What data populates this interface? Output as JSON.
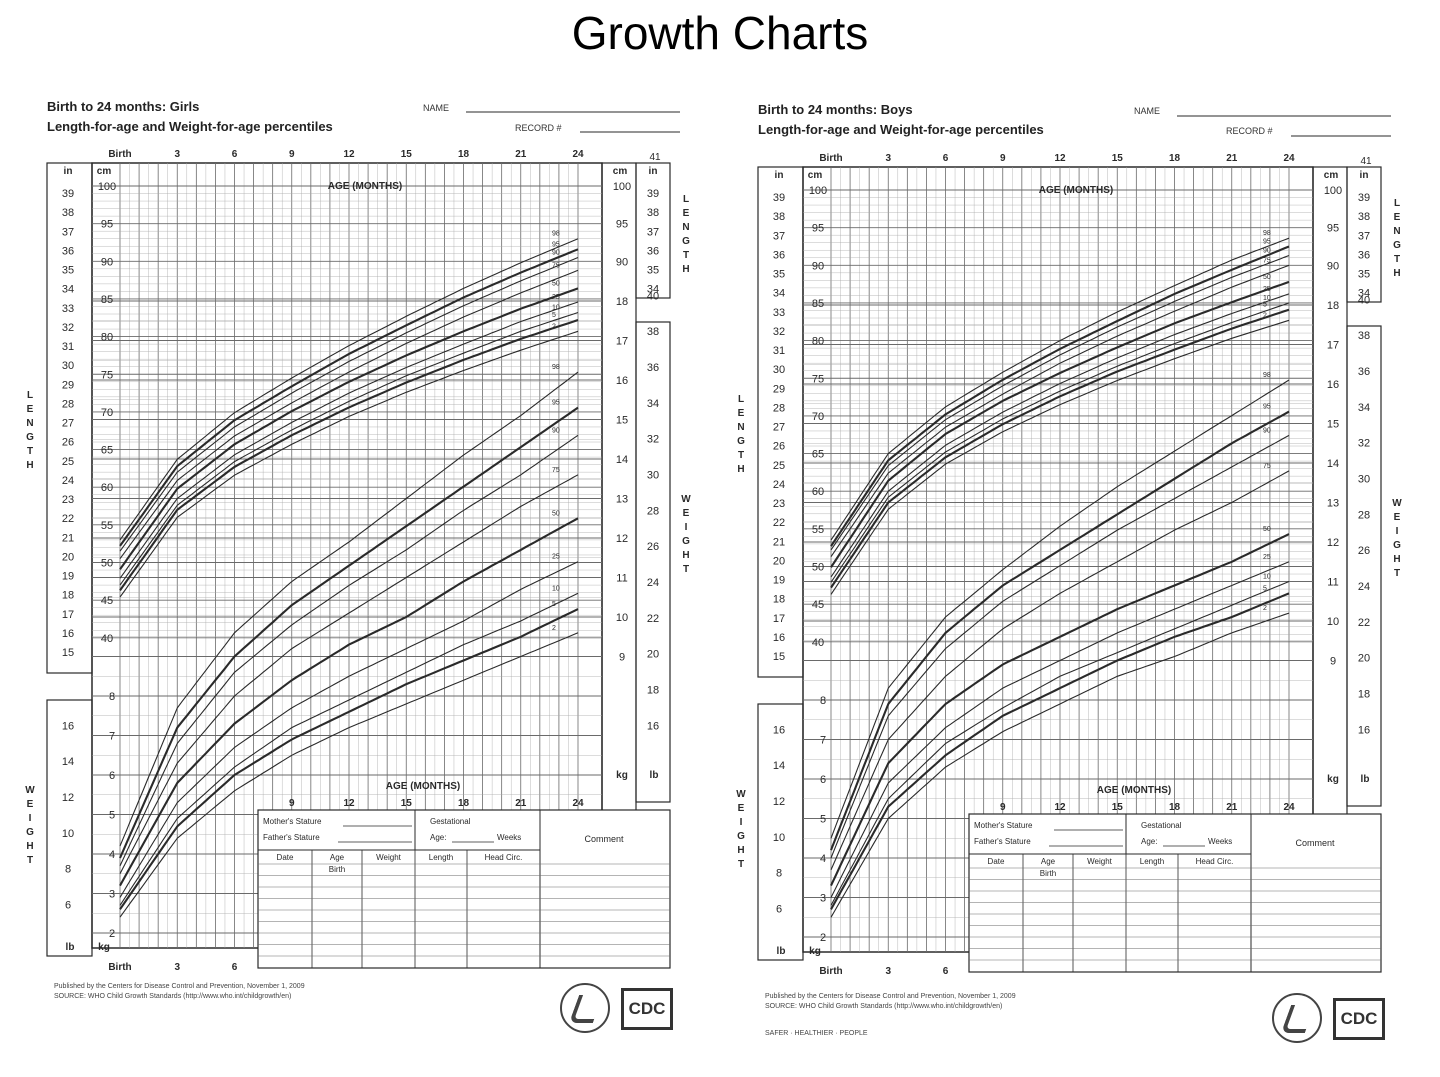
{
  "title": "Growth Charts",
  "colors": {
    "ink": "#2a2a2a",
    "grid": "#6a6a6a",
    "gridLight": "#a8a8a8",
    "background": "#ffffff"
  },
  "panels": [
    {
      "id": "girls",
      "title_line1": "Birth to 24 months: Girls",
      "title_line2": "Length-for-age and Weight-for-age percentiles",
      "name_label": "NAME",
      "record_label": "RECORD #",
      "axis_label": "AGE (MONTHS)",
      "unit_cm": "cm",
      "unit_in": "in",
      "unit_kg": "kg",
      "unit_lb": "lb",
      "side_length": "LENGTH",
      "side_weight": "WEIGHT",
      "pub_line1": "Published by the Centers for Disease Control and Prevention, November 1, 2009",
      "pub_line2": "SOURCE: WHO Child Growth Standards (http://www.who.int/childgrowth/en)",
      "footer_extra": "",
      "logo_text": "CDC",
      "form": {
        "mothers_stature": "Mother's Stature",
        "fathers_stature": "Father's Stature",
        "gestational": "Gestational",
        "age": "Age:",
        "weeks": "Weeks",
        "comment": "Comment",
        "cols": [
          "Date",
          "Age",
          "Weight",
          "Length",
          "Head Circ."
        ],
        "birth": "Birth"
      },
      "weight_pct_labels": [
        "98",
        "95",
        "90",
        "75",
        "50",
        "25",
        "10",
        "5",
        "2"
      ]
    },
    {
      "id": "boys",
      "title_line1": "Birth to 24 months: Boys",
      "title_line2": "Length-for-age and Weight-for-age percentiles",
      "name_label": "NAME",
      "record_label": "RECORD #",
      "axis_label": "AGE (MONTHS)",
      "unit_cm": "cm",
      "unit_in": "in",
      "unit_kg": "kg",
      "unit_lb": "lb",
      "side_length": "LENGTH",
      "side_weight": "WEIGHT",
      "pub_line1": "Published by the Centers for Disease Control and Prevention, November 1, 2009",
      "pub_line2": "SOURCE: WHO Child Growth Standards (http://www.who.int/childgrowth/en)",
      "footer_extra": "SAFER · HEALTHIER · PEOPLE",
      "logo_text": "CDC",
      "form": {
        "mothers_stature": "Mother's Stature",
        "fathers_stature": "Father's Stature",
        "gestational": "Gestational",
        "age": "Age:",
        "weeks": "Weeks",
        "comment": "Comment",
        "cols": [
          "Date",
          "Age",
          "Weight",
          "Length",
          "Head Circ."
        ],
        "birth": "Birth"
      },
      "weight_pct_labels": [
        "98",
        "95",
        "90",
        "75",
        "50",
        "25",
        "10",
        "5",
        "2"
      ]
    }
  ],
  "chart_data": [
    {
      "type": "line",
      "title": "Birth to 24 months: Girls — Length-for-age percentiles",
      "xlabel": "AGE (MONTHS)",
      "ylabel": "LENGTH",
      "x": [
        0,
        3,
        6,
        9,
        12,
        15,
        18,
        21,
        24
      ],
      "x_ticks": [
        "Birth",
        "3",
        "6",
        "9",
        "12",
        "15",
        "18",
        "21",
        "24"
      ],
      "y_unit": "cm",
      "ylim": [
        38,
        101
      ],
      "y_ticks": [
        40,
        45,
        50,
        55,
        60,
        65,
        70,
        75,
        80,
        85,
        90,
        95,
        100
      ],
      "y_ticks_in": [
        15,
        16,
        17,
        18,
        19,
        20,
        21,
        22,
        23,
        24,
        25,
        26,
        27,
        28,
        29,
        30,
        31,
        32,
        33,
        34,
        35,
        36,
        37,
        38,
        39
      ],
      "series": [
        {
          "name": "98",
          "values": [
            53.0,
            63.7,
            69.9,
            74.5,
            78.8,
            82.7,
            86.4,
            89.8,
            93.0
          ]
        },
        {
          "name": "95",
          "values": [
            52.2,
            62.8,
            68.9,
            73.4,
            77.7,
            81.5,
            85.2,
            88.5,
            91.6
          ]
        },
        {
          "name": "90",
          "values": [
            51.5,
            62.0,
            68.0,
            72.5,
            76.7,
            80.5,
            84.1,
            87.4,
            90.5
          ]
        },
        {
          "name": "75",
          "values": [
            50.5,
            60.9,
            66.8,
            71.2,
            75.3,
            79.1,
            82.6,
            85.8,
            88.8
          ]
        },
        {
          "name": "50",
          "values": [
            49.1,
            59.8,
            65.7,
            70.1,
            74.0,
            77.5,
            80.7,
            83.7,
            86.4
          ]
        },
        {
          "name": "25",
          "values": [
            47.9,
            58.5,
            64.3,
            68.6,
            72.5,
            75.9,
            79.0,
            82.0,
            84.6
          ]
        },
        {
          "name": "10",
          "values": [
            47.0,
            57.6,
            63.4,
            67.6,
            71.4,
            74.8,
            77.8,
            80.7,
            83.2
          ]
        },
        {
          "name": "5",
          "values": [
            46.3,
            57.0,
            62.7,
            66.9,
            70.6,
            73.9,
            76.9,
            79.7,
            82.2
          ]
        },
        {
          "name": "2",
          "values": [
            45.4,
            56.0,
            61.6,
            65.7,
            69.4,
            72.6,
            75.5,
            78.2,
            80.7
          ]
        }
      ]
    },
    {
      "type": "line",
      "title": "Birth to 24 months: Girls — Weight-for-age percentiles",
      "xlabel": "AGE (MONTHS)",
      "ylabel": "WEIGHT",
      "x": [
        0,
        3,
        6,
        9,
        12,
        15,
        18,
        21,
        24
      ],
      "x_ticks": [
        "Birth",
        "3",
        "6",
        "9",
        "12",
        "15",
        "18",
        "21",
        "24"
      ],
      "y_unit": "kg",
      "ylim": [
        1.5,
        19
      ],
      "y_ticks": [
        2,
        3,
        4,
        5,
        6,
        7,
        8,
        9,
        10,
        11,
        12,
        13,
        14,
        15,
        16,
        17,
        18
      ],
      "y_ticks_lb": [
        6,
        8,
        10,
        12,
        14,
        16,
        18,
        20,
        22,
        24,
        26,
        28,
        30,
        32,
        34,
        36,
        38,
        40
      ],
      "series": [
        {
          "name": "98",
          "values": [
            4.2,
            7.7,
            9.6,
            10.9,
            11.9,
            13.0,
            14.1,
            15.1,
            16.2
          ]
        },
        {
          "name": "95",
          "values": [
            3.9,
            7.2,
            9.0,
            10.3,
            11.3,
            12.3,
            13.3,
            14.3,
            15.3
          ]
        },
        {
          "name": "90",
          "values": [
            3.7,
            6.8,
            8.6,
            9.8,
            10.8,
            11.7,
            12.7,
            13.6,
            14.6
          ]
        },
        {
          "name": "75",
          "values": [
            3.5,
            6.3,
            8.0,
            9.2,
            10.1,
            11.0,
            11.9,
            12.8,
            13.6
          ]
        },
        {
          "name": "50",
          "values": [
            3.2,
            5.8,
            7.3,
            8.4,
            9.3,
            10.0,
            10.9,
            11.7,
            12.5
          ]
        },
        {
          "name": "25",
          "values": [
            2.9,
            5.3,
            6.7,
            7.7,
            8.5,
            9.2,
            9.9,
            10.7,
            11.4
          ]
        },
        {
          "name": "10",
          "values": [
            2.7,
            4.9,
            6.2,
            7.2,
            7.9,
            8.6,
            9.3,
            9.9,
            10.6
          ]
        },
        {
          "name": "5",
          "values": [
            2.6,
            4.7,
            6.0,
            6.9,
            7.6,
            8.3,
            8.9,
            9.5,
            10.2
          ]
        },
        {
          "name": "2",
          "values": [
            2.4,
            4.4,
            5.6,
            6.5,
            7.2,
            7.8,
            8.4,
            9.0,
            9.6
          ]
        }
      ]
    },
    {
      "type": "line",
      "title": "Birth to 24 months: Boys — Length-for-age percentiles",
      "xlabel": "AGE (MONTHS)",
      "ylabel": "LENGTH",
      "x": [
        0,
        3,
        6,
        9,
        12,
        15,
        18,
        21,
        24
      ],
      "x_ticks": [
        "Birth",
        "3",
        "6",
        "9",
        "12",
        "15",
        "18",
        "21",
        "24"
      ],
      "y_unit": "cm",
      "ylim": [
        38,
        101
      ],
      "y_ticks": [
        40,
        45,
        50,
        55,
        60,
        65,
        70,
        75,
        80,
        85,
        90,
        95,
        100
      ],
      "y_ticks_in": [
        15,
        16,
        17,
        18,
        19,
        20,
        21,
        22,
        23,
        24,
        25,
        26,
        27,
        28,
        29,
        30,
        31,
        32,
        33,
        34,
        35,
        36,
        37,
        38,
        39
      ],
      "series": [
        {
          "name": "98",
          "values": [
            53.5,
            65.0,
            71.2,
            75.8,
            80.0,
            83.8,
            87.3,
            90.7,
            93.6
          ]
        },
        {
          "name": "95",
          "values": [
            52.7,
            64.1,
            70.2,
            74.8,
            78.9,
            82.6,
            86.2,
            89.4,
            92.5
          ]
        },
        {
          "name": "90",
          "values": [
            52.2,
            63.4,
            69.5,
            74.0,
            78.1,
            81.8,
            85.2,
            88.4,
            91.3
          ]
        },
        {
          "name": "75",
          "values": [
            51.3,
            62.4,
            68.5,
            72.9,
            77.0,
            80.6,
            83.9,
            87.1,
            90.0
          ]
        },
        {
          "name": "50",
          "values": [
            49.9,
            61.4,
            67.6,
            72.0,
            75.7,
            79.1,
            82.3,
            85.1,
            87.8
          ]
        },
        {
          "name": "25",
          "values": [
            48.6,
            60.0,
            66.1,
            70.5,
            74.3,
            77.7,
            80.8,
            83.6,
            86.2
          ]
        },
        {
          "name": "10",
          "values": [
            47.9,
            59.2,
            65.2,
            69.6,
            73.3,
            76.6,
            79.6,
            82.4,
            85.0
          ]
        },
        {
          "name": "5",
          "values": [
            47.2,
            58.5,
            64.5,
            68.9,
            72.6,
            75.9,
            78.8,
            81.6,
            84.1
          ]
        },
        {
          "name": "2",
          "values": [
            46.3,
            57.6,
            63.6,
            67.9,
            71.5,
            74.7,
            77.6,
            80.3,
            82.7
          ]
        }
      ]
    },
    {
      "type": "line",
      "title": "Birth to 24 months: Boys — Weight-for-age percentiles",
      "xlabel": "AGE (MONTHS)",
      "ylabel": "WEIGHT",
      "x": [
        0,
        3,
        6,
        9,
        12,
        15,
        18,
        21,
        24
      ],
      "x_ticks": [
        "Birth",
        "3",
        "6",
        "9",
        "12",
        "15",
        "18",
        "21",
        "24"
      ],
      "y_unit": "kg",
      "ylim": [
        1.5,
        19
      ],
      "y_ticks": [
        2,
        3,
        4,
        5,
        6,
        7,
        8,
        9,
        10,
        11,
        12,
        13,
        14,
        15,
        16,
        17,
        18
      ],
      "y_ticks_lb": [
        6,
        8,
        10,
        12,
        14,
        16,
        18,
        20,
        22,
        24,
        26,
        28,
        30,
        32,
        34,
        36,
        38,
        40
      ],
      "series": [
        {
          "name": "98",
          "values": [
            4.5,
            8.3,
            10.1,
            11.3,
            12.4,
            13.4,
            14.3,
            15.2,
            16.1
          ]
        },
        {
          "name": "95",
          "values": [
            4.2,
            7.9,
            9.7,
            10.9,
            11.8,
            12.7,
            13.6,
            14.5,
            15.3
          ]
        },
        {
          "name": "90",
          "values": [
            4.0,
            7.6,
            9.3,
            10.5,
            11.4,
            12.3,
            13.1,
            13.9,
            14.7
          ]
        },
        {
          "name": "75",
          "values": [
            3.7,
            7.0,
            8.6,
            9.8,
            10.7,
            11.5,
            12.3,
            13.0,
            13.8
          ]
        },
        {
          "name": "50",
          "values": [
            3.3,
            6.4,
            7.9,
            8.9,
            9.6,
            10.3,
            10.9,
            11.5,
            12.2
          ]
        },
        {
          "name": "25",
          "values": [
            3.0,
            5.9,
            7.3,
            8.3,
            9.0,
            9.7,
            10.3,
            10.9,
            11.5
          ]
        },
        {
          "name": "10",
          "values": [
            2.8,
            5.5,
            6.9,
            7.8,
            8.6,
            9.2,
            9.8,
            10.4,
            11.0
          ]
        },
        {
          "name": "5",
          "values": [
            2.7,
            5.3,
            6.6,
            7.6,
            8.3,
            9.0,
            9.6,
            10.1,
            10.7
          ]
        },
        {
          "name": "2",
          "values": [
            2.5,
            5.0,
            6.3,
            7.2,
            7.9,
            8.6,
            9.1,
            9.7,
            10.2
          ]
        }
      ]
    }
  ]
}
